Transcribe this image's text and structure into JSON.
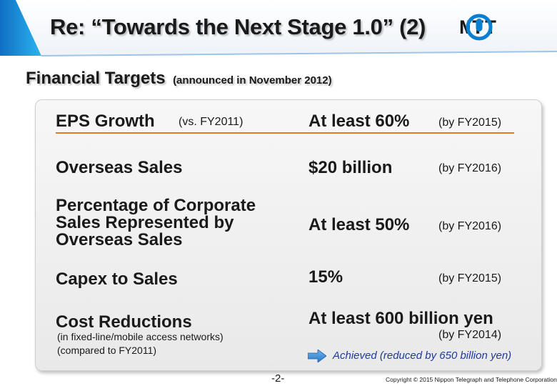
{
  "header": {
    "title": "Re: “Towards the Next Stage 1.0” (2)",
    "logo_text": "NTT"
  },
  "subheading": {
    "main": "Financial Targets",
    "note": "(announced in November 2012)"
  },
  "targets": [
    {
      "label": "EPS Growth",
      "qualifier": "(vs. FY2011)",
      "target": "At least 60%",
      "timing": "(by FY2015)"
    },
    {
      "label": "Overseas Sales",
      "target": "$20 billion",
      "timing": "(by FY2016)"
    },
    {
      "label_lines": [
        "Percentage of Corporate",
        "Sales Represented by",
        "Overseas Sales"
      ],
      "target": "At least 50%",
      "timing": "(by FY2016)"
    },
    {
      "label": "Capex to Sales",
      "target": "15%",
      "timing": "(by FY2015)"
    },
    {
      "label": "Cost Reductions",
      "notes": [
        "(in fixed-line/mobile access networks)",
        "(compared to FY2011)"
      ],
      "target": "At least 600 billion yen",
      "timing": "(by FY2014)",
      "status": "Achieved (reduced by 650 billion yen)"
    }
  ],
  "footer": {
    "page": "-2-",
    "copyright": "Copyright © 2015 Nippon Telegraph and Telephone Corporation."
  },
  "colors": {
    "accent_orange": "#e87722",
    "banner_blue": "#1aa3e8",
    "logo_blue": "#0a7fd0",
    "status_blue": "#1f3a9e"
  }
}
